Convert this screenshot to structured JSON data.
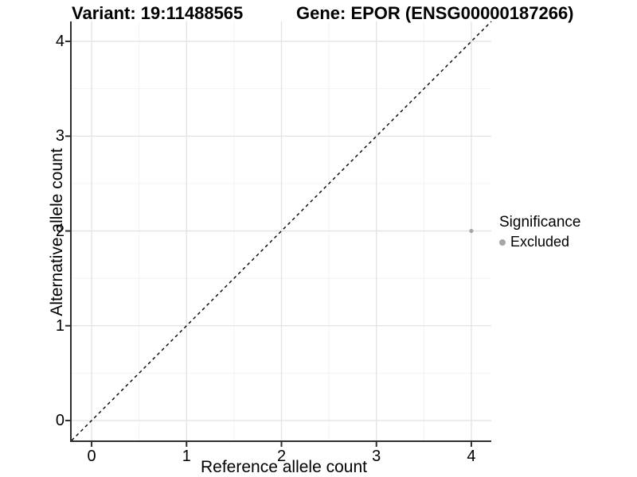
{
  "titles": {
    "left": "Variant: 19:11488565",
    "right": "Gene: EPOR (ENSG00000187266)"
  },
  "axes": {
    "x_label": "Reference allele count",
    "y_label": "Alternative allele count"
  },
  "legend": {
    "title": "Significance",
    "position": "right",
    "items": [
      {
        "label": "Excluded",
        "color": "#a6a6a6"
      }
    ]
  },
  "chart_data": {
    "type": "scatter",
    "title": "Variant: 19:11488565 / Gene: EPOR (ENSG00000187266)",
    "xlabel": "Reference allele count",
    "ylabel": "Alternative allele count",
    "xlim": [
      -0.21,
      4.21
    ],
    "ylim": [
      -0.21,
      4.21
    ],
    "x_ticks": [
      0,
      1,
      2,
      3,
      4
    ],
    "y_ticks": [
      0,
      1,
      2,
      3,
      4
    ],
    "x_minor_ticks": [
      0.5,
      1.5,
      2.5,
      3.5
    ],
    "y_minor_ticks": [
      0.5,
      1.5,
      2.5,
      3.5
    ],
    "grid": true,
    "legend_position": "right",
    "series": [
      {
        "name": "Excluded",
        "color": "#a6a6a6",
        "points": [
          {
            "x": 4,
            "y": 2
          }
        ]
      }
    ],
    "reference_line": {
      "equation": "y = x",
      "x1": -0.21,
      "y1": -0.21,
      "x2": 4.21,
      "y2": 4.21,
      "style": "dashed",
      "color": "#000000"
    },
    "colors": {
      "panel_background": "#ffffff",
      "grid_major": "#e4e4e4",
      "grid_minor": "#f2f2f2",
      "axis_line": "#2e2e2e",
      "point": "#a6a6a6",
      "text": "#000000"
    }
  }
}
